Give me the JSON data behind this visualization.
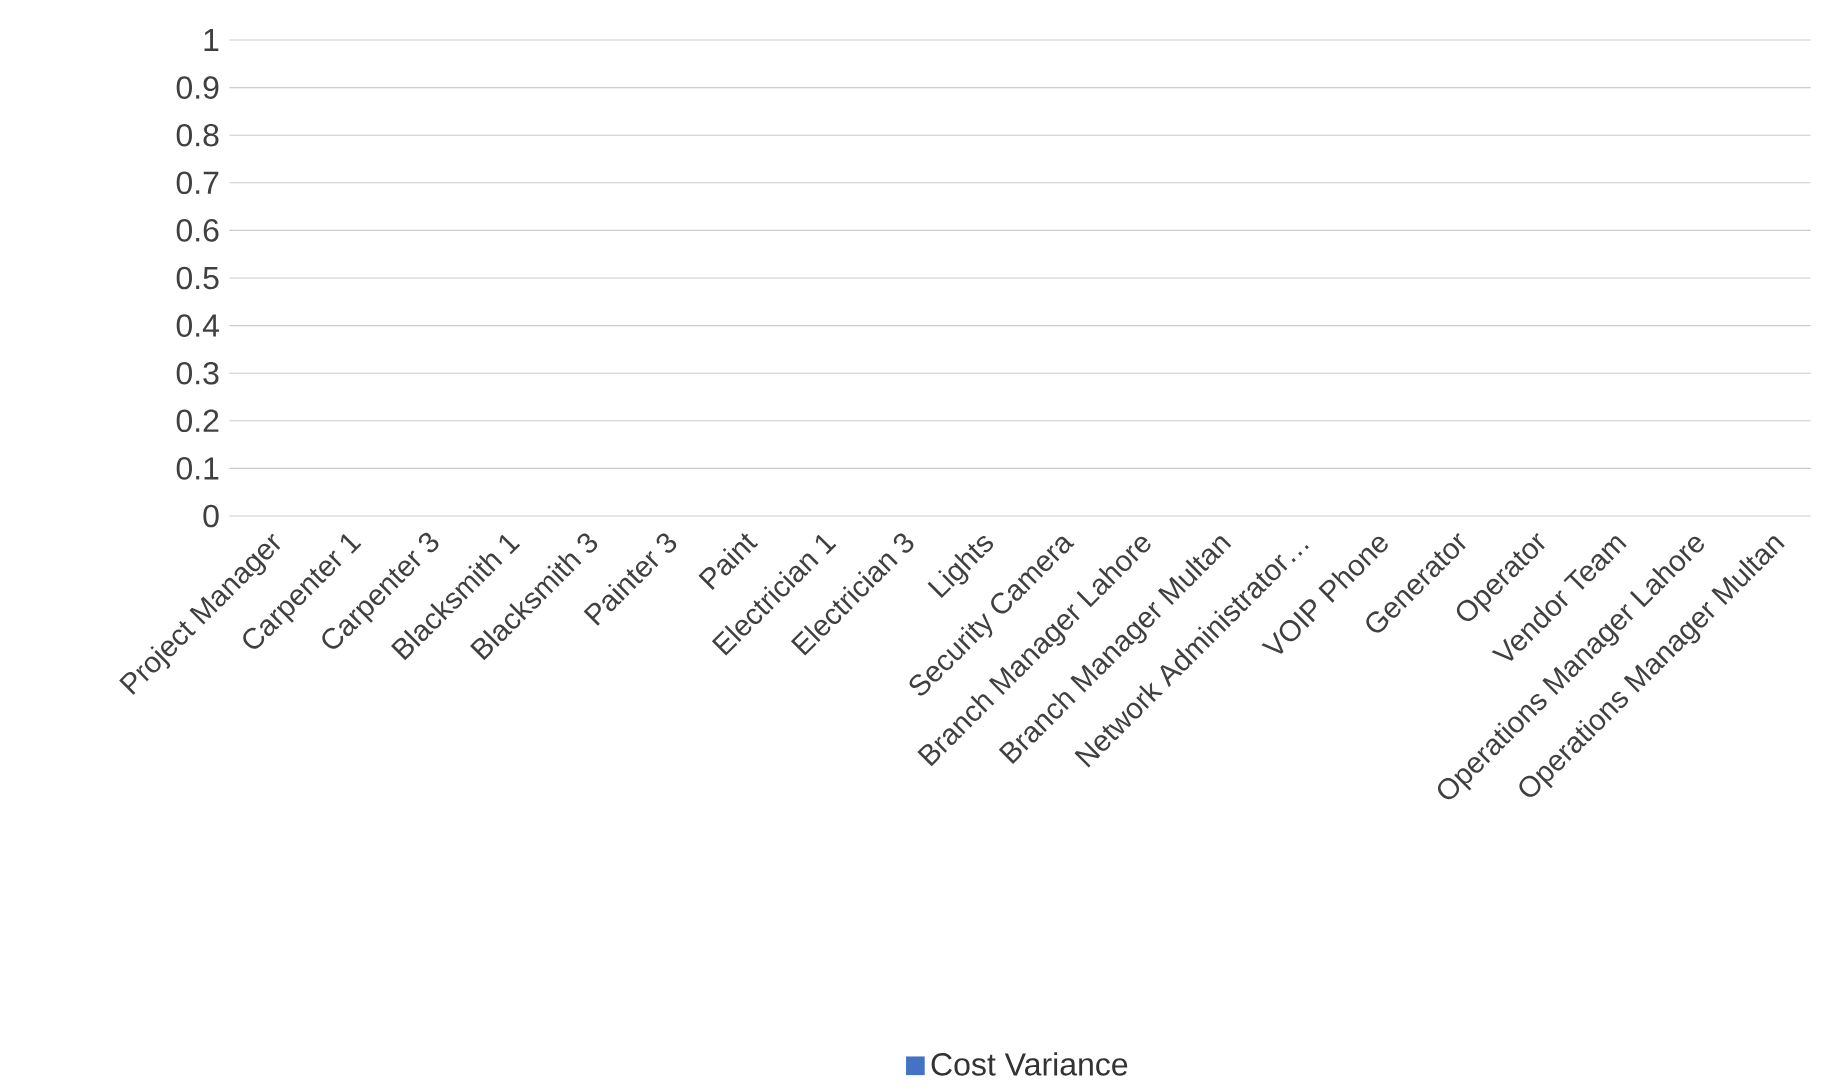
{
  "chart_data": {
    "type": "bar",
    "categories": [
      "Project Manager",
      "Carpenter 1",
      "Carpenter 3",
      "Blacksmith 1",
      "Blacksmith 3",
      "Painter 3",
      "Paint",
      "Electrician 1",
      "Electrician 3",
      "Lights",
      "Security Camera",
      "Branch Manager Lahore",
      "Branch Manager Multan",
      "Network Administrator…",
      "VOIP Phone",
      "Generator",
      "Operator",
      "Vendor Team",
      "Operations Manager Lahore",
      "Operations Manager Multan"
    ],
    "series": [
      {
        "name": "Cost Variance",
        "color": "#4472c4",
        "values": [
          0,
          0,
          0,
          0,
          0,
          0,
          0,
          0,
          0,
          0,
          0,
          0,
          0,
          0,
          0,
          0,
          0,
          0,
          0,
          0
        ]
      }
    ],
    "ylim": [
      0,
      1
    ],
    "yticks": [
      0,
      0.1,
      0.2,
      0.3,
      0.4,
      0.5,
      0.6,
      0.7,
      0.8,
      0.9,
      1
    ],
    "grid": "y",
    "legend": "bottom"
  }
}
